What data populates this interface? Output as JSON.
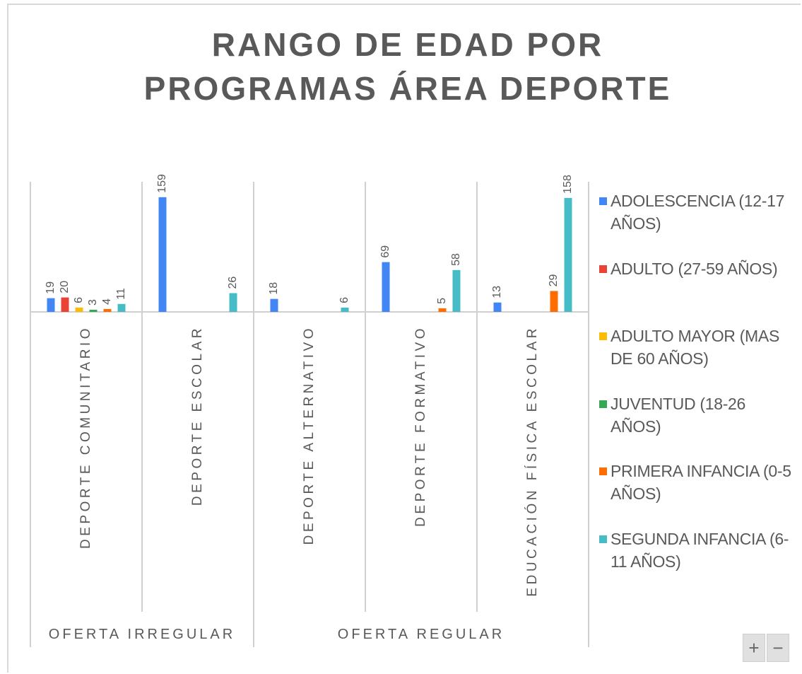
{
  "chart_data": {
    "type": "bar",
    "title": "RANGO DE EDAD POR PROGRAMAS ÁREA DEPORTE",
    "groups": [
      {
        "label": "OFERTA IRREGULAR",
        "categories": [
          "DEPORTE COMUNITARIO",
          "DEPORTE ESCOLAR"
        ]
      },
      {
        "label": "OFERTA REGULAR",
        "categories": [
          "DEPORTE ALTERNATIVO",
          "DEPORTE FORMATIVO",
          "EDUCACIÓN FÍSICA ESCOLAR"
        ]
      }
    ],
    "series": [
      {
        "name": "ADOLESCENCIA (12-17 AÑOS)",
        "color": "#4285f4",
        "values": [
          19,
          159,
          18,
          69,
          13
        ]
      },
      {
        "name": "ADULTO (27-59 AÑOS)",
        "color": "#ea4335",
        "values": [
          20,
          null,
          null,
          null,
          null
        ]
      },
      {
        "name": "ADULTO MAYOR (MAS DE 60 AÑOS)",
        "color": "#fbbc04",
        "values": [
          6,
          null,
          null,
          null,
          null
        ]
      },
      {
        "name": "JUVENTUD (18-26 AÑOS)",
        "color": "#34a853",
        "values": [
          3,
          null,
          null,
          null,
          null
        ]
      },
      {
        "name": "PRIMERA INFANCIA (0-5 AÑOS)",
        "color": "#ff6d01",
        "values": [
          4,
          null,
          null,
          5,
          29
        ]
      },
      {
        "name": "SEGUNDA INFANCIA (6-11 AÑOS)",
        "color": "#46bdc6",
        "values": [
          11,
          26,
          6,
          58,
          158
        ]
      }
    ],
    "legend": "right",
    "zoom_controls": [
      "+",
      "−"
    ]
  }
}
